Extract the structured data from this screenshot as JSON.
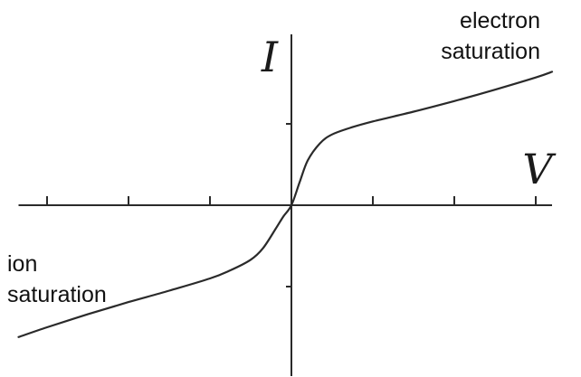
{
  "chart_data": {
    "type": "line",
    "xlabel": "V",
    "ylabel": "I",
    "annotations": {
      "upper_line1": "electron",
      "upper_line2": "saturation",
      "lower_line1": "ion",
      "lower_line2": "saturation"
    },
    "x_ticks": [
      -3,
      -2,
      -1,
      1,
      2,
      3
    ],
    "y_ticks": [
      -1,
      1
    ],
    "xlim": [
      -3.35,
      3.2
    ],
    "ylim": [
      -2.1,
      2.1
    ],
    "grid": false,
    "series": [
      {
        "x": [
          -3.35,
          -3.0,
          -2.5,
          -2.0,
          -1.5,
          -1.0,
          -0.75,
          -0.5,
          -0.35,
          -0.2,
          -0.1,
          0.0,
          0.1,
          0.2,
          0.35,
          0.5,
          0.75,
          1.0,
          1.5,
          2.0,
          2.5,
          3.0,
          3.2
        ],
        "y": [
          -1.62,
          -1.5,
          -1.34,
          -1.19,
          -1.05,
          -0.9,
          -0.8,
          -0.67,
          -0.53,
          -0.3,
          -0.14,
          0.0,
          0.28,
          0.55,
          0.76,
          0.87,
          0.96,
          1.03,
          1.15,
          1.28,
          1.42,
          1.57,
          1.64
        ]
      }
    ]
  }
}
